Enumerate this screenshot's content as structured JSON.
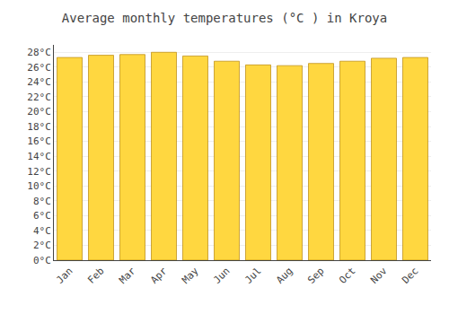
{
  "chart_data": {
    "type": "bar",
    "title": "Average monthly temperatures (°C ) in Kroya",
    "categories": [
      "Jan",
      "Feb",
      "Mar",
      "Apr",
      "May",
      "Jun",
      "Jul",
      "Aug",
      "Sep",
      "Oct",
      "Nov",
      "Dec"
    ],
    "values": [
      27.3,
      27.6,
      27.7,
      28.0,
      27.5,
      26.8,
      26.3,
      26.2,
      26.5,
      26.8,
      27.2,
      27.3
    ],
    "color": "#FFD740",
    "ylim": [
      0,
      29
    ],
    "yticks": [
      {
        "value": 0,
        "label": "0°C"
      },
      {
        "value": 2,
        "label": "2°C"
      },
      {
        "value": 4,
        "label": "4°C"
      },
      {
        "value": 6,
        "label": "6°C"
      },
      {
        "value": 8,
        "label": "8°C"
      },
      {
        "value": 10,
        "label": "10°C"
      },
      {
        "value": 12,
        "label": "12°C"
      },
      {
        "value": 14,
        "label": "14°C"
      },
      {
        "value": 16,
        "label": "16°C"
      },
      {
        "value": 18,
        "label": "18°C"
      },
      {
        "value": 20,
        "label": "20°C"
      },
      {
        "value": 22,
        "label": "22°C"
      },
      {
        "value": 24,
        "label": "24°C"
      },
      {
        "value": 26,
        "label": "26°C"
      },
      {
        "value": 28,
        "label": "28°C"
      }
    ],
    "grid": true
  }
}
